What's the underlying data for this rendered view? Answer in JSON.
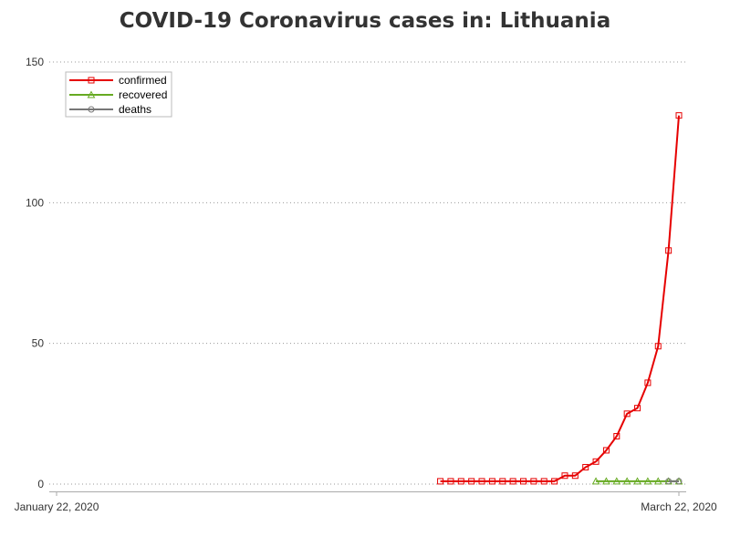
{
  "chart_data": {
    "type": "line",
    "title": "COVID-19 Coronavirus cases in: Lithuania",
    "xlabel": "",
    "ylabel": "",
    "x_range": [
      "2020-01-22",
      "2020-03-22"
    ],
    "x_tick_labels": [
      "January 22, 2020",
      "March 22, 2020"
    ],
    "ylim": [
      0,
      150
    ],
    "y_ticks": [
      0,
      50,
      100,
      150
    ],
    "grid": "horizontal dotted",
    "legend_position": "top-left",
    "series": [
      {
        "name": "confirmed",
        "color": "#e60000",
        "marker": "square",
        "x": [
          "2020-02-28",
          "2020-02-29",
          "2020-03-01",
          "2020-03-02",
          "2020-03-03",
          "2020-03-04",
          "2020-03-05",
          "2020-03-06",
          "2020-03-07",
          "2020-03-08",
          "2020-03-09",
          "2020-03-10",
          "2020-03-11",
          "2020-03-12",
          "2020-03-13",
          "2020-03-14",
          "2020-03-15",
          "2020-03-16",
          "2020-03-17",
          "2020-03-18",
          "2020-03-19",
          "2020-03-20",
          "2020-03-21",
          "2020-03-22"
        ],
        "values": [
          1,
          1,
          1,
          1,
          1,
          1,
          1,
          1,
          1,
          1,
          1,
          1,
          3,
          3,
          6,
          8,
          12,
          17,
          25,
          27,
          36,
          49,
          83,
          131
        ]
      },
      {
        "name": "recovered",
        "color": "#66aa22",
        "marker": "triangle",
        "x": [
          "2020-03-14",
          "2020-03-15",
          "2020-03-16",
          "2020-03-17",
          "2020-03-18",
          "2020-03-19",
          "2020-03-20",
          "2020-03-21",
          "2020-03-22"
        ],
        "values": [
          1,
          1,
          1,
          1,
          1,
          1,
          1,
          1,
          1
        ]
      },
      {
        "name": "deaths",
        "color": "#777777",
        "marker": "circle",
        "x": [
          "2020-03-21",
          "2020-03-22"
        ],
        "values": [
          1,
          1
        ]
      }
    ]
  }
}
